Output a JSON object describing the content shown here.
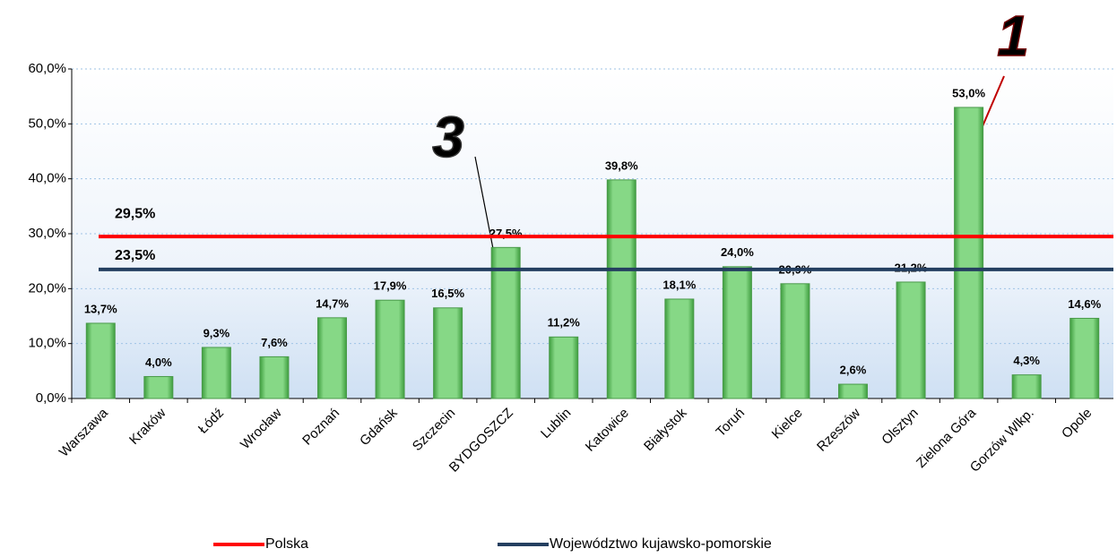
{
  "chart_data": {
    "type": "bar",
    "categories": [
      "Warszawa",
      "Kraków",
      "Łódź",
      "Wrocław",
      "Poznań",
      "Gdańsk",
      "Szczecin",
      "BYDGOSZCZ",
      "Lublin",
      "Katowice",
      "Białystok",
      "Toruń",
      "Kielce",
      "Rzeszów",
      "Olsztyn",
      "Zielona Góra",
      "Gorzów Wlkp.",
      "Opole"
    ],
    "values": [
      13.7,
      4.0,
      9.3,
      7.6,
      14.7,
      17.9,
      16.5,
      27.5,
      11.2,
      39.8,
      18.1,
      24.0,
      20.9,
      2.6,
      21.2,
      53.0,
      4.3,
      14.6
    ],
    "value_labels": [
      "13,7%",
      "4,0%",
      "9,3%",
      "7,6%",
      "14,7%",
      "17,9%",
      "16,5%",
      "27,5%",
      "11,2%",
      "39,8%",
      "18,1%",
      "24,0%",
      "20,9%",
      "2,6%",
      "21,2%",
      "53,0%",
      "4,3%",
      "14,6%"
    ],
    "color": "#7fd17f",
    "ylim": [
      0,
      60
    ],
    "yticks": [
      {
        "value": 0,
        "label": "0,0%"
      },
      {
        "value": 10,
        "label": "10,0%"
      },
      {
        "value": 20,
        "label": "20,0%"
      },
      {
        "value": 30,
        "label": "30,0%"
      },
      {
        "value": 40,
        "label": "40,0%"
      },
      {
        "value": 50,
        "label": "50,0%"
      },
      {
        "value": 60,
        "label": "60,0%"
      }
    ],
    "grid": true,
    "reference_lines": [
      {
        "name": "Polska",
        "color": "#ff0000",
        "value": 29.5,
        "value_label": "29,5%"
      },
      {
        "name": "Województwo kujawsko-pomorskie",
        "color": "#243f60",
        "value": 23.5,
        "value_label": "23,5%"
      }
    ],
    "annotations": [
      "1",
      "3"
    ]
  }
}
